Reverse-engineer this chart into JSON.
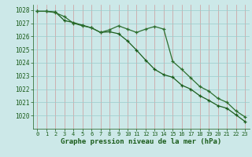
{
  "x": [
    0,
    1,
    2,
    3,
    4,
    5,
    6,
    7,
    8,
    9,
    10,
    11,
    12,
    13,
    14,
    15,
    16,
    17,
    18,
    19,
    20,
    21,
    22,
    23
  ],
  "line1": [
    1027.9,
    1027.9,
    1027.8,
    1027.5,
    1027.0,
    1026.8,
    1026.65,
    1026.3,
    1026.5,
    1026.8,
    1026.55,
    1026.3,
    1026.55,
    1026.75,
    1026.55,
    1024.1,
    1023.5,
    1022.85,
    1022.2,
    1021.85,
    1021.3,
    1021.0,
    1020.35,
    1019.9
  ],
  "line2": [
    1027.9,
    1027.9,
    1027.85,
    1027.2,
    1027.05,
    1026.85,
    1026.65,
    1026.3,
    1026.35,
    1026.2,
    1025.65,
    1024.95,
    1024.2,
    1023.5,
    1023.1,
    1022.9,
    1022.3,
    1022.0,
    1021.5,
    1021.15,
    1020.75,
    1020.55,
    1020.05,
    1019.55
  ],
  "line1_color": "#2d6e2d",
  "line2_color": "#1a5c1a",
  "marker": "+",
  "bg_color": "#cce8e8",
  "grid_color": "#99cccc",
  "grid_color2": "#cc9999",
  "xlabel": "Graphe pression niveau de la mer (hPa)",
  "xlabel_color": "#1a5c1a",
  "tick_color": "#1a5c1a",
  "ylim": [
    1019.0,
    1028.4
  ],
  "yticks": [
    1020,
    1021,
    1022,
    1023,
    1024,
    1025,
    1026,
    1027,
    1028
  ],
  "xlim": [
    -0.5,
    23.5
  ],
  "xticks": [
    0,
    1,
    2,
    3,
    4,
    5,
    6,
    7,
    8,
    9,
    10,
    11,
    12,
    13,
    14,
    15,
    16,
    17,
    18,
    19,
    20,
    21,
    22,
    23
  ]
}
